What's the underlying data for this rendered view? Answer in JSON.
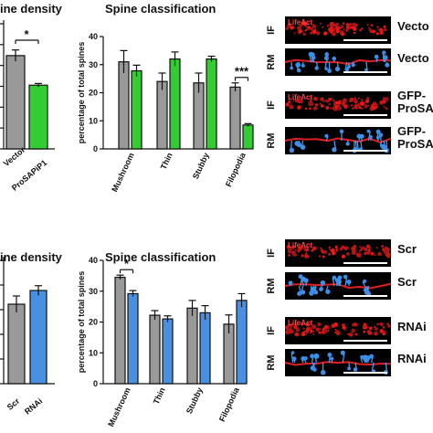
{
  "colors": {
    "control_gray": "#999999",
    "ko_green": "#33cc33",
    "rnai_blue": "#4a90e2",
    "micrograph_bg": "#000000"
  },
  "chart_data": [
    {
      "id": "top-left",
      "type": "bar",
      "title": "ine density",
      "categories": [
        "Vector",
        "ProSAPiP1"
      ],
      "values": [
        8.2,
        5.6
      ],
      "errors": [
        0.5,
        0.15
      ],
      "colors": [
        "#999999",
        "#33cc33"
      ],
      "ylim": [
        0,
        11
      ],
      "yticks": [],
      "significance": "*"
    },
    {
      "id": "top-right",
      "type": "bar",
      "title": "Spine classification",
      "ylabel": "percentage of total spines",
      "categories": [
        "Mushroom",
        "Thin",
        "Stubby",
        "Filopodia"
      ],
      "series": [
        {
          "values": [
            31,
            24,
            23.5,
            22
          ],
          "errors": [
            4,
            3,
            3.5,
            1.5
          ],
          "color": "#999999"
        },
        {
          "values": [
            27.8,
            32,
            32,
            8.5
          ],
          "errors": [
            2,
            2.5,
            1,
            0.5
          ],
          "color": "#33cc33"
        }
      ],
      "ylim": [
        0,
        40
      ],
      "yticks": [
        0,
        10,
        20,
        30,
        40
      ],
      "significance": [
        {
          "category": "Filopodia",
          "label": "***"
        }
      ]
    },
    {
      "id": "bottom-left",
      "type": "bar",
      "title": "ine density",
      "categories": [
        "Scr",
        "RNAi"
      ],
      "values": [
        5.8,
        6.8
      ],
      "errors": [
        0.6,
        0.35
      ],
      "colors": [
        "#999999",
        "#4a90e2"
      ],
      "ylim": [
        0,
        9
      ],
      "yticks": []
    },
    {
      "id": "bottom-right",
      "type": "bar",
      "title": "Spine classification",
      "ylabel": "percentage of total spines",
      "categories": [
        "Mushroom",
        "Thin",
        "Stubby",
        "Filopodia"
      ],
      "series": [
        {
          "values": [
            34.5,
            22.2,
            24.5,
            19.3
          ],
          "errors": [
            0.7,
            1.5,
            2.5,
            3
          ],
          "color": "#999999"
        },
        {
          "values": [
            29.2,
            21,
            23,
            27
          ],
          "errors": [
            1,
            1,
            2.3,
            2.2
          ],
          "color": "#4a90e2"
        }
      ],
      "ylim": [
        0,
        40
      ],
      "yticks": [
        0,
        10,
        20,
        30,
        40
      ],
      "significance": [
        {
          "category": "Mushroom",
          "label": "*"
        }
      ]
    }
  ],
  "panels": [
    {
      "mode": "IF",
      "tag": "LifeAct",
      "label": [
        "Vecto"
      ],
      "kind": "if"
    },
    {
      "mode": "RM",
      "tag": "",
      "label": [
        "Vecto"
      ],
      "kind": "rm"
    },
    {
      "mode": "IF",
      "tag": "LifeAct",
      "label": [
        "GFP-",
        "ProSA"
      ],
      "kind": "if"
    },
    {
      "mode": "RM",
      "tag": "",
      "label": [
        "GFP-",
        "ProSA"
      ],
      "kind": "rm"
    },
    {
      "mode": "IF",
      "tag": "LifeAct",
      "label": [
        "Scr"
      ],
      "kind": "if"
    },
    {
      "mode": "RM",
      "tag": "",
      "label": [
        "Scr"
      ],
      "kind": "rm"
    },
    {
      "mode": "IF",
      "tag": "LifeAct",
      "label": [
        "RNAi"
      ],
      "kind": "if"
    },
    {
      "mode": "RM",
      "tag": "",
      "label": [
        "RNAi"
      ],
      "kind": "rm"
    }
  ]
}
